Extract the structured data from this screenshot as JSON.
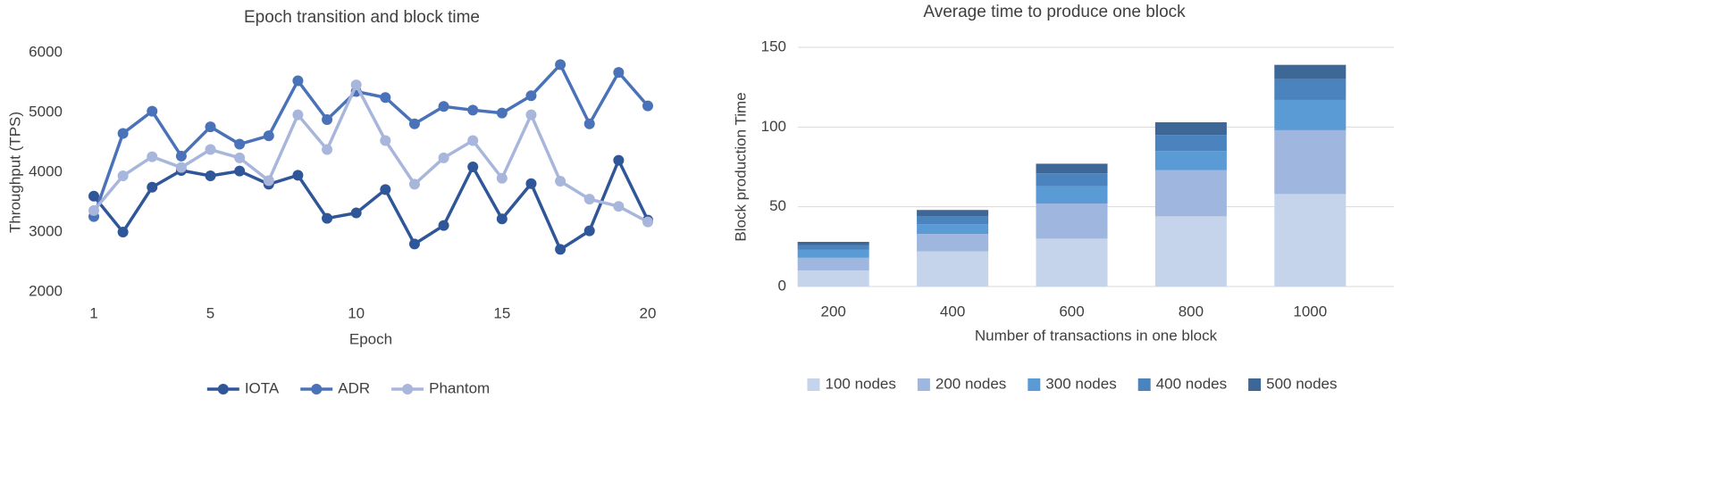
{
  "chart_data": [
    {
      "type": "line",
      "title": "Epoch transition and block time",
      "x_label": "Epoch",
      "y_label": "Throughput (TPS)",
      "x": [
        1,
        2,
        3,
        4,
        5,
        6,
        7,
        8,
        9,
        10,
        11,
        12,
        13,
        14,
        15,
        16,
        17,
        18,
        19,
        20
      ],
      "xlim": [
        1,
        20
      ],
      "xticks": [
        1,
        5,
        10,
        15,
        20
      ],
      "ylim": [
        2000,
        6000
      ],
      "yticks": [
        2000,
        3000,
        4000,
        5000,
        6000
      ],
      "grid": false,
      "legend": "bottom",
      "series": [
        {
          "name": "IOTA",
          "color": "#30569a",
          "values": [
            3600,
            3000,
            3750,
            4030,
            3940,
            4020,
            3800,
            3950,
            3230,
            3320,
            3710,
            2800,
            3110,
            4090,
            3220,
            3810,
            2710,
            3020,
            4200,
            3200
          ]
        },
        {
          "name": "ADR",
          "color": "#4a72b8",
          "values": [
            3260,
            4650,
            5020,
            4270,
            4760,
            4470,
            4610,
            5530,
            4880,
            5350,
            5250,
            4810,
            5100,
            5040,
            4990,
            5280,
            5800,
            4810,
            5670,
            5110
          ]
        },
        {
          "name": "Phantom",
          "color": "#a8b6dc",
          "values": [
            3360,
            3940,
            4260,
            4080,
            4380,
            4240,
            3860,
            4960,
            4380,
            5460,
            4530,
            3800,
            4240,
            4530,
            3900,
            4960,
            3850,
            3550,
            3430,
            3170
          ]
        }
      ]
    },
    {
      "type": "stacked_bar",
      "title": "Average time to produce one block",
      "x_label": "Number of transactions in one block",
      "y_label": "Block production Time",
      "categories": [
        "200",
        "400",
        "600",
        "800",
        "1000"
      ],
      "ylim": [
        0,
        150
      ],
      "yticks": [
        0,
        50,
        100,
        150
      ],
      "grid": true,
      "legend": "bottom",
      "series": [
        {
          "name": "100 nodes",
          "color": "#c6d4eb",
          "values": [
            10,
            22,
            30,
            44,
            58
          ]
        },
        {
          "name": "200 nodes",
          "color": "#9fb6df",
          "values": [
            8,
            11,
            22,
            29,
            40
          ]
        },
        {
          "name": "300 nodes",
          "color": "#5b9bd5",
          "values": [
            5,
            6,
            11,
            12,
            19
          ]
        },
        {
          "name": "400 nodes",
          "color": "#4a83bd",
          "values": [
            3,
            5,
            8,
            10,
            13
          ]
        },
        {
          "name": "500 nodes",
          "color": "#3d6796",
          "values": [
            2,
            4,
            6,
            8,
            9
          ]
        }
      ]
    }
  ]
}
